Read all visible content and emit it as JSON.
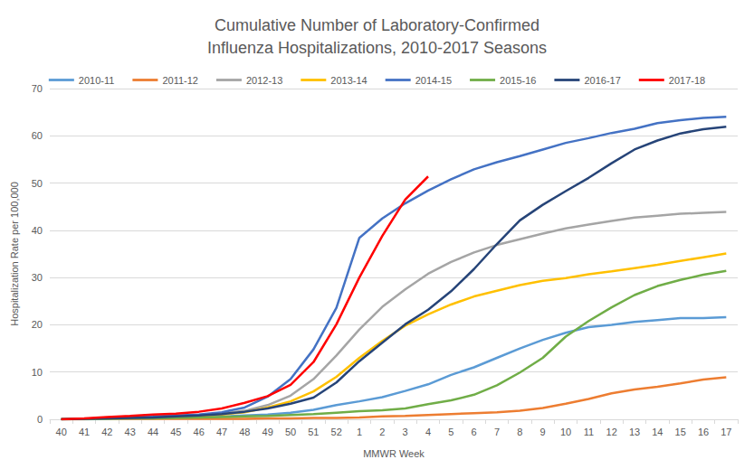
{
  "chart_data": {
    "type": "line",
    "title": "Cumulative Number of Laboratory-Confirmed\nInfluenza Hospitalizations, 2010-2017 Seasons",
    "x_label": "MMWR Week",
    "y_label": "Hospitalization Rate per 100,000",
    "categories": [
      "40",
      "41",
      "42",
      "43",
      "44",
      "45",
      "46",
      "47",
      "48",
      "49",
      "50",
      "51",
      "52",
      "1",
      "2",
      "3",
      "4",
      "5",
      "6",
      "7",
      "8",
      "9",
      "10",
      "11",
      "12",
      "13",
      "14",
      "15",
      "16",
      "17"
    ],
    "ylim": [
      0,
      70
    ],
    "yticks": [
      0,
      10,
      20,
      30,
      40,
      50,
      60,
      70
    ],
    "grid": true,
    "legend": "top",
    "series": [
      {
        "name": "2010-11",
        "color": "#5B9BD5",
        "values": [
          0,
          0.1,
          0.2,
          0.2,
          0.3,
          0.4,
          0.5,
          0.6,
          0.8,
          1.0,
          1.4,
          2.0,
          3.0,
          3.8,
          4.7,
          6.0,
          7.4,
          9.4,
          11.0,
          13.0,
          15.0,
          16.8,
          18.3,
          19.5,
          20.0,
          20.6,
          21.0,
          21.4,
          21.4,
          21.6
        ]
      },
      {
        "name": "2011-12",
        "color": "#ED7D31",
        "values": [
          0,
          0,
          0.1,
          0.1,
          0.1,
          0.1,
          0.1,
          0.1,
          0.1,
          0.2,
          0.2,
          0.3,
          0.3,
          0.4,
          0.6,
          0.7,
          0.9,
          1.1,
          1.3,
          1.5,
          1.8,
          2.4,
          3.3,
          4.3,
          5.5,
          6.3,
          6.9,
          7.6,
          8.4,
          8.9
        ]
      },
      {
        "name": "2012-13",
        "color": "#A5A5A5",
        "values": [
          0,
          0.1,
          0.2,
          0.3,
          0.5,
          0.7,
          0.9,
          1.2,
          1.8,
          3.0,
          5.0,
          8.5,
          13.5,
          19.0,
          23.8,
          27.5,
          30.8,
          33.3,
          35.3,
          36.9,
          38.1,
          39.3,
          40.4,
          41.2,
          42.0,
          42.7,
          43.1,
          43.5,
          43.7,
          43.9
        ]
      },
      {
        "name": "2013-14",
        "color": "#FFC000",
        "values": [
          0,
          0.1,
          0.2,
          0.3,
          0.4,
          0.5,
          0.7,
          1.0,
          1.5,
          2.5,
          3.8,
          5.9,
          9.0,
          13.0,
          16.6,
          19.8,
          22.2,
          24.3,
          26.0,
          27.2,
          28.4,
          29.3,
          29.9,
          30.7,
          31.3,
          32.0,
          32.7,
          33.5,
          34.3,
          35.1
        ]
      },
      {
        "name": "2014-15",
        "color": "#4472C4",
        "values": [
          0,
          0.1,
          0.3,
          0.4,
          0.6,
          0.8,
          1.0,
          1.5,
          2.5,
          4.8,
          8.5,
          14.8,
          23.6,
          38.4,
          42.5,
          45.7,
          48.4,
          50.8,
          52.9,
          54.4,
          55.7,
          57.1,
          58.5,
          59.5,
          60.6,
          61.5,
          62.7,
          63.3,
          63.8,
          64.0
        ]
      },
      {
        "name": "2015-16",
        "color": "#70AD47",
        "values": [
          0,
          0,
          0.1,
          0.2,
          0.2,
          0.3,
          0.4,
          0.5,
          0.6,
          0.7,
          0.9,
          1.1,
          1.4,
          1.7,
          1.9,
          2.3,
          3.2,
          4.0,
          5.2,
          7.2,
          9.9,
          13.0,
          17.5,
          20.8,
          23.7,
          26.3,
          28.2,
          29.5,
          30.6,
          31.4
        ]
      },
      {
        "name": "2016-17",
        "color": "#264478",
        "values": [
          0,
          0.1,
          0.2,
          0.3,
          0.4,
          0.6,
          0.8,
          1.1,
          1.6,
          2.3,
          3.3,
          4.6,
          7.8,
          12.3,
          16.2,
          20.1,
          23.2,
          27.1,
          31.8,
          37.1,
          42.1,
          45.4,
          48.3,
          51.1,
          54.2,
          57.1,
          59.0,
          60.5,
          61.4,
          61.9
        ]
      },
      {
        "name": "2017-18",
        "color": "#FF0000",
        "values": [
          0,
          0.2,
          0.5,
          0.7,
          1.0,
          1.2,
          1.6,
          2.3,
          3.5,
          4.9,
          7.3,
          12.1,
          20.1,
          30.0,
          38.8,
          46.5,
          51.4,
          null,
          null,
          null,
          null,
          null,
          null,
          null,
          null,
          null,
          null,
          null,
          null,
          null
        ]
      }
    ]
  }
}
